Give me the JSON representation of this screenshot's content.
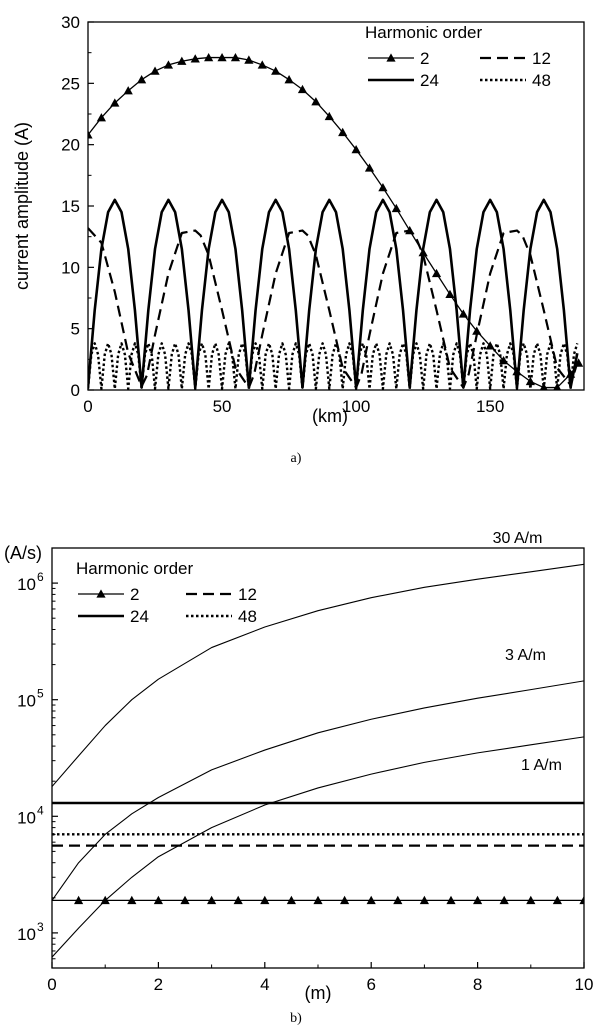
{
  "chart_data": [
    {
      "panel_label": "a)",
      "type": "line",
      "xlabel": "(km)",
      "ylabel": "current amplitude (A)",
      "xlim": [
        0,
        185
      ],
      "ylim": [
        0,
        30
      ],
      "xticks": [
        0,
        50,
        100,
        150
      ],
      "yticks": [
        0,
        5,
        10,
        15,
        20,
        25,
        30
      ],
      "legend": {
        "title": "Harmonic order",
        "placement": "top-right"
      },
      "series": [
        {
          "name": "2",
          "style": "solid-triangle",
          "x": [
            0,
            5,
            10,
            15,
            20,
            25,
            30,
            35,
            40,
            45,
            50,
            55,
            60,
            65,
            70,
            75,
            80,
            85,
            90,
            95,
            100,
            105,
            110,
            115,
            120,
            125,
            130,
            135,
            140,
            145,
            150,
            155,
            160,
            165,
            170,
            175,
            180,
            183
          ],
          "values": [
            20.8,
            22.2,
            23.4,
            24.4,
            25.3,
            26.0,
            26.5,
            26.8,
            27.0,
            27.1,
            27.1,
            27.1,
            26.9,
            26.5,
            26.0,
            25.3,
            24.5,
            23.5,
            22.3,
            21.0,
            19.6,
            18.1,
            16.5,
            14.8,
            13.0,
            11.2,
            9.5,
            7.8,
            6.2,
            4.8,
            3.6,
            2.4,
            1.5,
            0.7,
            0.2,
            0.2,
            1.3,
            2.2
          ]
        },
        {
          "name": "12",
          "style": "dashed",
          "x": [
            0,
            5,
            10,
            15,
            20,
            22,
            25,
            30,
            35,
            40,
            42,
            45,
            50,
            55,
            60,
            62,
            65,
            70,
            75,
            80,
            82,
            85,
            90,
            95,
            100,
            102,
            105,
            110,
            115,
            120,
            122,
            125,
            130,
            135,
            140,
            142,
            145,
            150,
            155,
            160,
            162,
            165,
            170,
            175,
            180,
            183
          ],
          "values": [
            13.2,
            12.0,
            8.0,
            3.0,
            0.3,
            1.2,
            4.5,
            9.5,
            12.8,
            13.0,
            12.6,
            11.0,
            6.5,
            1.8,
            0.2,
            1.3,
            4.5,
            9.5,
            12.8,
            13.0,
            12.6,
            11.0,
            6.5,
            1.8,
            0.2,
            1.3,
            4.5,
            9.5,
            12.8,
            13.0,
            12.6,
            11.0,
            6.5,
            1.8,
            0.2,
            1.3,
            4.5,
            9.5,
            12.8,
            13.0,
            12.6,
            11.0,
            6.5,
            1.8,
            0.4,
            2.6
          ]
        },
        {
          "name": "24",
          "style": "solid-thick",
          "x": [
            0,
            2.5,
            5,
            7.5,
            10,
            12.5,
            15,
            17.5,
            20,
            22.5,
            25,
            27.5,
            30,
            32.5,
            35,
            37.5,
            40,
            42.5,
            45,
            47.5,
            50,
            52.5,
            55,
            57.5,
            60,
            62.5,
            65,
            67.5,
            70,
            72.5,
            75,
            77.5,
            80,
            82.5,
            85,
            87.5,
            90,
            92.5,
            95,
            97.5,
            100,
            102.5,
            105,
            107.5,
            110,
            112.5,
            115,
            117.5,
            120,
            122.5,
            125,
            127.5,
            130,
            132.5,
            135,
            137.5,
            140,
            142.5,
            145,
            147.5,
            150,
            152.5,
            155,
            157.5,
            160,
            162.5,
            165,
            167.5,
            170,
            172.5,
            175,
            177.5,
            180,
            182.5
          ],
          "values": [
            0.2,
            6.5,
            11.5,
            14.5,
            15.5,
            14.5,
            11.5,
            6.5,
            0.2,
            6.5,
            11.5,
            14.5,
            15.5,
            14.5,
            11.5,
            6.5,
            0.2,
            6.5,
            11.5,
            14.5,
            15.5,
            14.5,
            11.5,
            6.5,
            0.2,
            6.5,
            11.5,
            14.5,
            15.5,
            14.5,
            11.5,
            6.5,
            0.2,
            6.5,
            11.5,
            14.5,
            15.5,
            14.5,
            11.5,
            6.5,
            0.2,
            6.5,
            11.5,
            14.5,
            15.5,
            14.5,
            11.5,
            6.5,
            0.2,
            6.5,
            11.5,
            14.5,
            15.5,
            14.5,
            11.5,
            6.5,
            0.2,
            6.5,
            11.5,
            14.5,
            15.5,
            14.5,
            11.5,
            6.5,
            0.2,
            6.5,
            11.5,
            14.5,
            15.5,
            14.5,
            11.5,
            6.5,
            0.2,
            3.0
          ]
        },
        {
          "name": "48",
          "style": "dotted",
          "x": [
            0,
            1.25,
            2.5,
            3.75,
            5,
            6.25,
            7.5,
            8.75,
            10,
            11.25,
            12.5,
            13.75,
            15,
            16.25,
            17.5,
            18.75,
            20,
            21.25,
            22.5,
            23.75,
            25,
            26.25,
            27.5,
            28.75,
            30,
            31.25,
            32.5,
            33.75,
            35,
            36.25,
            37.5,
            38.75,
            40,
            41.25,
            42.5,
            43.75,
            45,
            46.25,
            47.5,
            48.75,
            50,
            51.25,
            52.5,
            53.75,
            55,
            56.25,
            57.5,
            58.75,
            60,
            61.25,
            62.5,
            63.75,
            65,
            66.25,
            67.5,
            68.75,
            70,
            71.25,
            72.5,
            73.75,
            75,
            76.25,
            77.5,
            78.75,
            80,
            81.25,
            82.5,
            83.75,
            85,
            86.25,
            87.5,
            88.75,
            90,
            91.25,
            92.5,
            93.75,
            95,
            96.25,
            97.5,
            98.75,
            100,
            101.25,
            102.5,
            103.75,
            105,
            106.25,
            107.5,
            108.75,
            110,
            111.25,
            112.5,
            113.75,
            115,
            116.25,
            117.5,
            118.75,
            120,
            121.25,
            122.5,
            123.75,
            125,
            126.25,
            127.5,
            128.75,
            130,
            131.25,
            132.5,
            133.75,
            135,
            136.25,
            137.5,
            138.75,
            140,
            141.25,
            142.5,
            143.75,
            145,
            146.25,
            147.5,
            148.75,
            150,
            151.25,
            152.5,
            153.75,
            155,
            156.25,
            157.5,
            158.75,
            160,
            161.25,
            162.5,
            163.75,
            165,
            166.25,
            167.5,
            168.75,
            170,
            171.25,
            172.5,
            173.75,
            175,
            176.25,
            177.5,
            178.75,
            180,
            181.25,
            182.5
          ],
          "values": [
            0.1,
            2.9,
            3.8,
            2.9,
            0.1,
            2.9,
            3.8,
            2.9,
            0.1,
            2.9,
            3.8,
            2.9,
            0.1,
            2.9,
            3.8,
            2.9,
            0.1,
            2.9,
            3.8,
            2.9,
            0.1,
            2.9,
            3.8,
            2.9,
            0.1,
            2.9,
            3.8,
            2.9,
            0.1,
            2.9,
            3.8,
            2.9,
            0.1,
            2.9,
            3.8,
            2.9,
            0.1,
            2.9,
            3.8,
            2.9,
            0.1,
            2.9,
            3.8,
            2.9,
            0.1,
            2.9,
            3.8,
            2.9,
            0.1,
            2.9,
            3.8,
            2.9,
            0.1,
            2.9,
            3.8,
            2.9,
            0.1,
            2.9,
            3.8,
            2.9,
            0.1,
            2.9,
            3.8,
            2.9,
            0.1,
            2.9,
            3.8,
            2.9,
            0.1,
            2.9,
            3.8,
            2.9,
            0.1,
            2.9,
            3.8,
            2.9,
            0.1,
            2.9,
            3.8,
            2.9,
            0.1,
            2.9,
            3.8,
            2.9,
            0.1,
            2.9,
            3.8,
            2.9,
            0.1,
            2.9,
            3.8,
            2.9,
            0.1,
            2.9,
            3.8,
            2.9,
            0.1,
            2.9,
            3.8,
            2.9,
            0.1,
            2.9,
            3.8,
            2.9,
            0.1,
            2.9,
            3.8,
            2.9,
            0.1,
            2.9,
            3.8,
            2.9,
            0.1,
            2.9,
            3.8,
            2.9,
            0.1,
            2.9,
            3.8,
            2.9,
            0.1,
            2.9,
            3.8,
            2.9,
            0.1,
            2.9,
            3.8,
            2.9,
            0.1,
            2.9,
            3.8,
            2.9,
            0.1,
            2.9,
            3.8,
            2.9,
            0.1,
            2.9,
            3.8,
            2.9,
            0.1,
            2.9,
            3.8,
            2.9,
            0.1,
            2.9,
            3.8
          ]
        }
      ]
    },
    {
      "panel_label": "b)",
      "type": "line",
      "yscale": "log",
      "xlabel": "(m)",
      "ylabel": "(A/s)",
      "xlim": [
        0,
        10
      ],
      "ylim": [
        500,
        2000000
      ],
      "xticks": [
        0,
        2,
        4,
        6,
        8,
        10
      ],
      "yticks": [
        {
          "base": "10",
          "exp": "3",
          "value": 1000
        },
        {
          "base": "10",
          "exp": "4",
          "value": 10000
        },
        {
          "base": "10",
          "exp": "5",
          "value": 100000
        },
        {
          "base": "10",
          "exp": "6",
          "value": 1000000
        }
      ],
      "legend": {
        "title": "Harmonic order",
        "placement": "top-left"
      },
      "series": [
        {
          "name": "2",
          "style": "solid-triangle",
          "x": [
            0,
            10
          ],
          "values": [
            1900,
            1900
          ]
        },
        {
          "name": "12",
          "style": "dashed",
          "x": [
            0,
            10
          ],
          "values": [
            5600,
            5600
          ]
        },
        {
          "name": "24",
          "style": "solid-thick",
          "x": [
            0,
            10
          ],
          "values": [
            13000,
            13000
          ]
        },
        {
          "name": "48",
          "style": "dotted",
          "x": [
            0,
            10
          ],
          "values": [
            7000,
            7000
          ]
        },
        {
          "style": "solid-thin",
          "x": [
            0,
            0.5,
            1,
            1.5,
            2,
            3,
            4,
            5,
            6,
            7,
            8,
            9,
            10
          ],
          "values": [
            18000,
            33000,
            60000,
            100000,
            150000,
            280000,
            420000,
            580000,
            750000,
            920000,
            1080000,
            1250000,
            1450000
          ]
        },
        {
          "style": "solid-thin",
          "x": [
            0,
            0.5,
            1,
            1.5,
            2,
            3,
            4,
            5,
            6,
            7,
            8,
            9,
            10
          ],
          "values": [
            1900,
            4000,
            7000,
            10500,
            14500,
            25000,
            37000,
            52000,
            68000,
            85000,
            103000,
            122000,
            145000
          ]
        },
        {
          "style": "solid-thin",
          "x": [
            0,
            0.5,
            1,
            1.5,
            2,
            3,
            4,
            5,
            6,
            7,
            8,
            9,
            10
          ],
          "values": [
            620,
            1100,
            1900,
            3000,
            4500,
            8000,
            12500,
            17500,
            23000,
            29000,
            35000,
            41000,
            48000
          ]
        }
      ],
      "annotations": [
        {
          "text": "30 A/m",
          "x": 8.75,
          "y": 2200000
        },
        {
          "text": "3 A/m",
          "x": 8.9,
          "y": 220000
        },
        {
          "text": "1 A/m",
          "x": 9.2,
          "y": 25000
        }
      ]
    }
  ]
}
